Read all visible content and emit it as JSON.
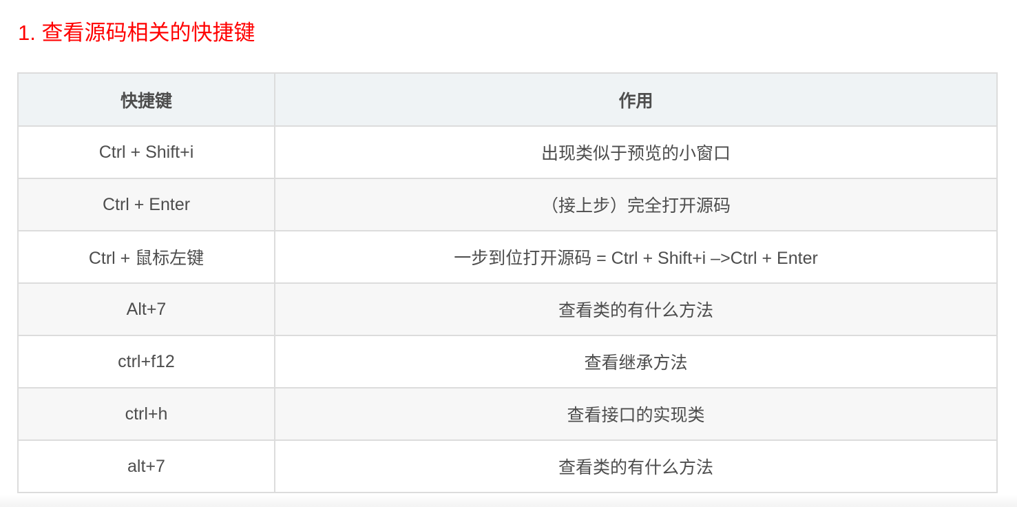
{
  "heading": "1. 查看源码相关的快捷键",
  "table": {
    "headers": [
      "快捷键",
      "作用"
    ],
    "rows": [
      [
        "Ctrl + Shift+i",
        "出现类似于预览的小窗口"
      ],
      [
        "Ctrl + Enter",
        "（接上步）完全打开源码"
      ],
      [
        "Ctrl + 鼠标左键",
        "一步到位打开源码 = Ctrl + Shift+i –>Ctrl + Enter"
      ],
      [
        "Alt+7",
        "查看类的有什么方法"
      ],
      [
        "ctrl+f12",
        "查看继承方法"
      ],
      [
        "ctrl+h",
        "查看接口的实现类"
      ],
      [
        "alt+7",
        "查看类的有什么方法"
      ]
    ]
  },
  "colors": {
    "heading": "#ff0000",
    "header_bg": "#eff3f5",
    "stripe_bg": "#f7f7f7",
    "border": "#dcdcdc"
  }
}
